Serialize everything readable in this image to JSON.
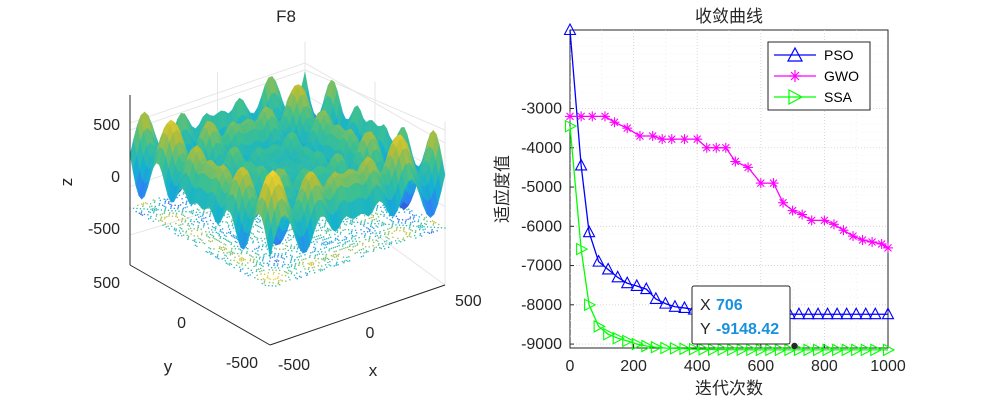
{
  "chart_data": [
    {
      "type": "surface3d",
      "title": "F8",
      "xlabel": "x",
      "ylabel": "y",
      "zlabel": "z",
      "x_ticks": [
        "-500",
        "0",
        "500"
      ],
      "y_ticks": [
        "-500",
        "0",
        "500"
      ],
      "z_ticks": [
        "500",
        "0",
        "-500"
      ],
      "xlim": [
        -500,
        500
      ],
      "ylim": [
        -500,
        500
      ],
      "zlim": [
        -838,
        838
      ],
      "function": "z = -x*sin(sqrt(|x|)) - y*sin(sqrt(|y|))",
      "colormap": [
        "#3e26a8",
        "#2e7ff5",
        "#14b2cf",
        "#3ec08f",
        "#b3bd39",
        "#f9d529"
      ]
    },
    {
      "type": "line",
      "title": "收敛曲线",
      "xlabel": "迭代次数",
      "ylabel": "适应度值",
      "xlim": [
        0,
        1000
      ],
      "ylim": [
        -9100,
        -1000
      ],
      "x_ticks": [
        "0",
        "200",
        "400",
        "600",
        "800",
        "1000"
      ],
      "y_ticks": [
        "-3000",
        "-4000",
        "-5000",
        "-6000",
        "-7000",
        "-8000",
        "-9000"
      ],
      "grid": true,
      "legend_position": "top-right",
      "series": [
        {
          "name": "PSO",
          "color": "#0000ff",
          "marker": "triangle-up",
          "x": [
            0,
            35,
            60,
            90,
            120,
            150,
            180,
            210,
            240,
            270,
            300,
            330,
            360,
            390,
            420,
            450,
            480,
            510,
            540,
            570,
            600,
            630,
            660,
            690,
            720,
            750,
            780,
            810,
            840,
            870,
            900,
            930,
            960,
            1000
          ],
          "y": [
            -1000,
            -4450,
            -6150,
            -6900,
            -7100,
            -7300,
            -7450,
            -7520,
            -7600,
            -7850,
            -7970,
            -8050,
            -8080,
            -8120,
            -8140,
            -8160,
            -8180,
            -8190,
            -8200,
            -8210,
            -8220,
            -8225,
            -8230,
            -8235,
            -8240,
            -8240,
            -8240,
            -8240,
            -8240,
            -8240,
            -8240,
            -8240,
            -8240,
            -8240
          ]
        },
        {
          "name": "GWO",
          "color": "#ff00ff",
          "marker": "asterisk",
          "x": [
            0,
            35,
            70,
            110,
            140,
            180,
            220,
            260,
            290,
            320,
            360,
            400,
            430,
            460,
            490,
            520,
            560,
            600,
            640,
            670,
            700,
            730,
            760,
            800,
            830,
            860,
            890,
            920,
            950,
            980,
            1000
          ],
          "y": [
            -3200,
            -3200,
            -3200,
            -3200,
            -3350,
            -3500,
            -3700,
            -3700,
            -3780,
            -3780,
            -3780,
            -3780,
            -4000,
            -4000,
            -4000,
            -4350,
            -4500,
            -4900,
            -4900,
            -5400,
            -5600,
            -5700,
            -5850,
            -5850,
            -5950,
            -6100,
            -6250,
            -6350,
            -6400,
            -6450,
            -6550
          ]
        },
        {
          "name": "SSA",
          "color": "#00ff00",
          "marker": "triangle-right",
          "x": [
            0,
            35,
            60,
            90,
            120,
            150,
            180,
            210,
            240,
            270,
            300,
            330,
            360,
            390,
            420,
            450,
            480,
            510,
            540,
            570,
            600,
            630,
            660,
            690,
            720,
            750,
            780,
            810,
            840,
            870,
            900,
            930,
            960,
            1000
          ],
          "y": [
            -3450,
            -6580,
            -8000,
            -8550,
            -8750,
            -8850,
            -8920,
            -9000,
            -9050,
            -9080,
            -9100,
            -9110,
            -9120,
            -9130,
            -9135,
            -9140,
            -9142,
            -9144,
            -9145,
            -9146,
            -9147,
            -9148,
            -9148,
            -9148,
            -9148,
            -9148,
            -9148,
            -9148,
            -9148,
            -9148,
            -9148,
            -9148,
            -9148,
            -9148
          ]
        }
      ],
      "datatip": {
        "x_label": "X",
        "x_value": "706",
        "y_label": "Y",
        "y_value": "-9148.42",
        "x": 706,
        "y": -9148.42
      }
    }
  ]
}
